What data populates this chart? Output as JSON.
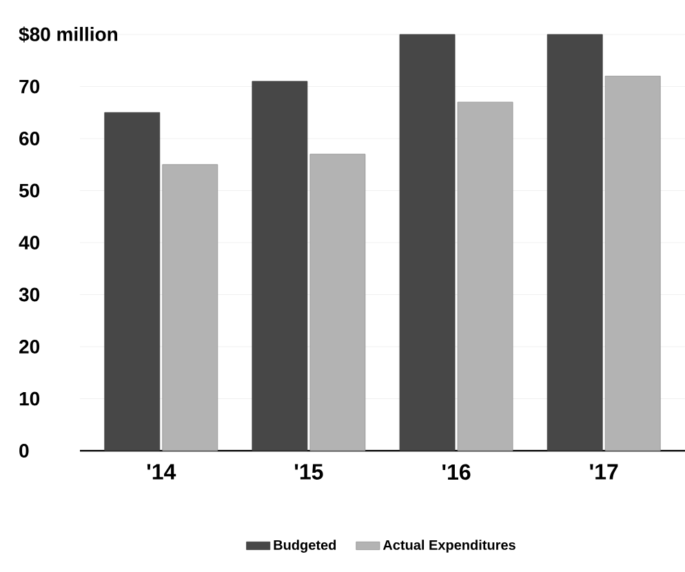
{
  "chart_data": {
    "type": "bar",
    "categories": [
      "'14",
      "'15",
      "'16",
      "'17"
    ],
    "series": [
      {
        "name": "Budgeted",
        "color": "#474747",
        "values": [
          65,
          71,
          80,
          80
        ]
      },
      {
        "name": "Actual Expenditures",
        "color": "#b3b3b3",
        "values": [
          55,
          57,
          67,
          72
        ]
      }
    ],
    "ylim": [
      0,
      80
    ],
    "yticks": [
      0,
      10,
      20,
      30,
      40,
      50,
      60,
      70,
      {
        "value": 80,
        "label": "$80 million"
      }
    ],
    "grid": "y",
    "legend": "bottom"
  }
}
